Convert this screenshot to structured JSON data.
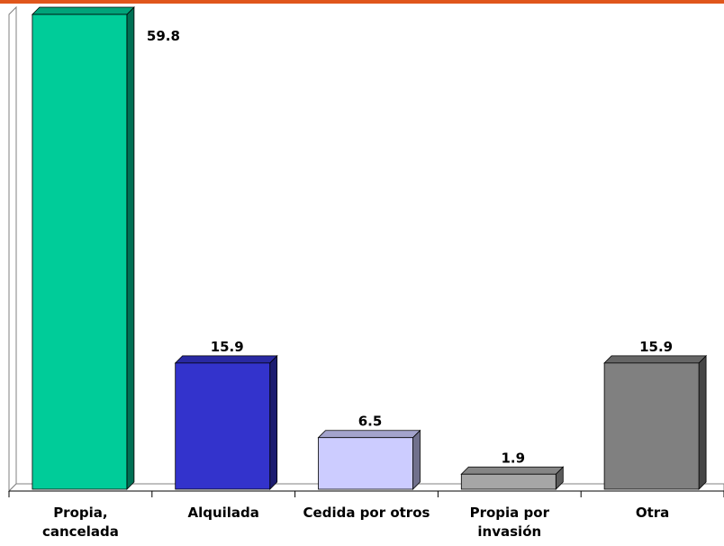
{
  "chart_data": {
    "type": "bar3d",
    "categories": [
      "Propia, cancelada",
      "Alquilada",
      "Cedida por otros",
      "Propia por invasión",
      "Otra"
    ],
    "values": [
      59.8,
      15.9,
      6.5,
      1.9,
      15.9
    ],
    "colors": [
      "#00cc99",
      "#3333cc",
      "#ccccff",
      "#a6a6a6",
      "#808080"
    ]
  }
}
